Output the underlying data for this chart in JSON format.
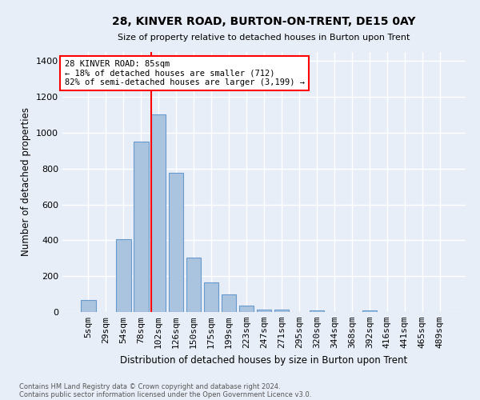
{
  "title": "28, KINVER ROAD, BURTON-ON-TRENT, DE15 0AY",
  "subtitle": "Size of property relative to detached houses in Burton upon Trent",
  "xlabel": "Distribution of detached houses by size in Burton upon Trent",
  "ylabel": "Number of detached properties",
  "footer_line1": "Contains HM Land Registry data © Crown copyright and database right 2024.",
  "footer_line2": "Contains public sector information licensed under the Open Government Licence v3.0.",
  "categories": [
    "5sqm",
    "29sqm",
    "54sqm",
    "78sqm",
    "102sqm",
    "126sqm",
    "150sqm",
    "175sqm",
    "199sqm",
    "223sqm",
    "247sqm",
    "271sqm",
    "295sqm",
    "320sqm",
    "344sqm",
    "368sqm",
    "392sqm",
    "416sqm",
    "441sqm",
    "465sqm",
    "489sqm"
  ],
  "values": [
    65,
    0,
    405,
    950,
    1100,
    775,
    305,
    165,
    100,
    35,
    15,
    15,
    0,
    10,
    0,
    0,
    10,
    0,
    0,
    0,
    0
  ],
  "bar_color": "#aac4e0",
  "bar_edge_color": "#6699cc",
  "background_color": "#e8eef8",
  "grid_color": "#ffffff",
  "vline_color": "red",
  "annotation_text": "28 KINVER ROAD: 85sqm\n← 18% of detached houses are smaller (712)\n82% of semi-detached houses are larger (3,199) →",
  "annotation_box_color": "white",
  "annotation_box_edge": "red",
  "ylim": [
    0,
    1450
  ],
  "yticks": [
    0,
    200,
    400,
    600,
    800,
    1000,
    1200,
    1400
  ]
}
